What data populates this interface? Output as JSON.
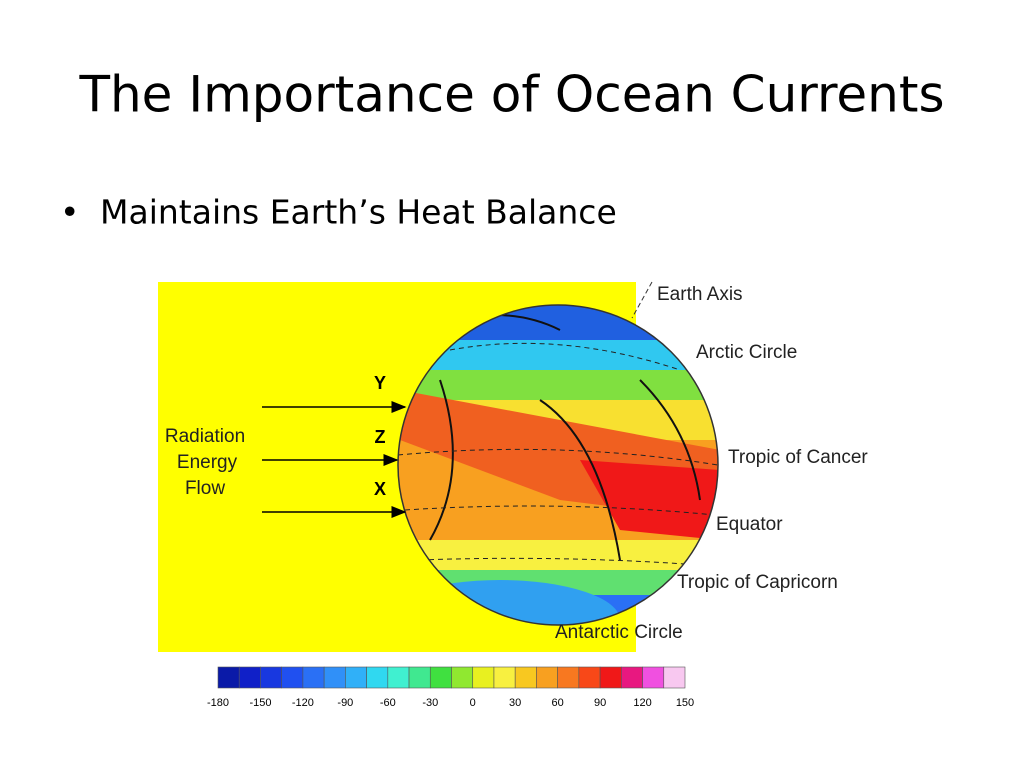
{
  "title": "The Importance of Ocean Currents",
  "bullets": [
    "Maintains Earth’s Heat Balance"
  ],
  "figure": {
    "flow_label": [
      "Radiation",
      "Energy",
      "Flow"
    ],
    "arrows": [
      "Y",
      "Z",
      "X"
    ],
    "globe_labels": [
      "Earth Axis",
      "Arctic Circle",
      "Tropic of Cancer",
      "Equator",
      "Tropic of Capricorn",
      "Antarctic Circle"
    ],
    "colorbar": {
      "colors": [
        "#0a1aa8",
        "#1020c8",
        "#1838e0",
        "#2050f0",
        "#2a70f5",
        "#3090f8",
        "#30b0f8",
        "#30d8f0",
        "#40f0d0",
        "#40e890",
        "#40e040",
        "#90e830",
        "#e8f020",
        "#f8f040",
        "#f8c820",
        "#f8a020",
        "#f87820",
        "#f84818",
        "#f01818",
        "#e81880",
        "#f050e0",
        "#f8c8f0"
      ],
      "ticks": [
        -180,
        -150,
        -120,
        -90,
        -60,
        -30,
        0,
        30,
        60,
        90,
        120,
        150
      ]
    }
  }
}
